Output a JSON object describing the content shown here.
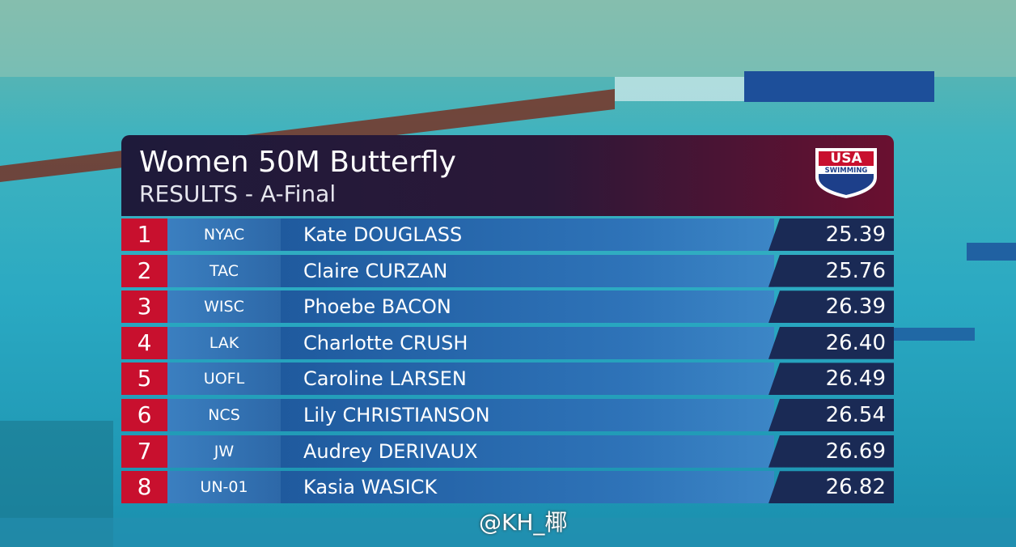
{
  "header": {
    "title": "Women 50M Butterfly",
    "subtitle": "RESULTS - A-Final",
    "logo": {
      "top": "USA",
      "bottom": "SWIMMING"
    }
  },
  "results": {
    "rows": [
      {
        "place": "1",
        "club": "NYAC",
        "name": "Kate DOUGLASS",
        "time": "25.39"
      },
      {
        "place": "2",
        "club": "TAC",
        "name": "Claire CURZAN",
        "time": "25.76"
      },
      {
        "place": "3",
        "club": "WISC",
        "name": "Phoebe BACON",
        "time": "26.39"
      },
      {
        "place": "4",
        "club": "LAK",
        "name": "Charlotte CRUSH",
        "time": "26.40"
      },
      {
        "place": "5",
        "club": "UOFL",
        "name": "Caroline LARSEN",
        "time": "26.49"
      },
      {
        "place": "6",
        "club": "NCS",
        "name": "Lily CHRISTIANSON",
        "time": "26.54"
      },
      {
        "place": "7",
        "club": "JW",
        "name": "Audrey DERIVAUX",
        "time": "26.69"
      },
      {
        "place": "8",
        "club": "UN-01",
        "name": "Kasia WASICK",
        "time": "26.82"
      }
    ]
  },
  "watermark": "@KH_椰"
}
